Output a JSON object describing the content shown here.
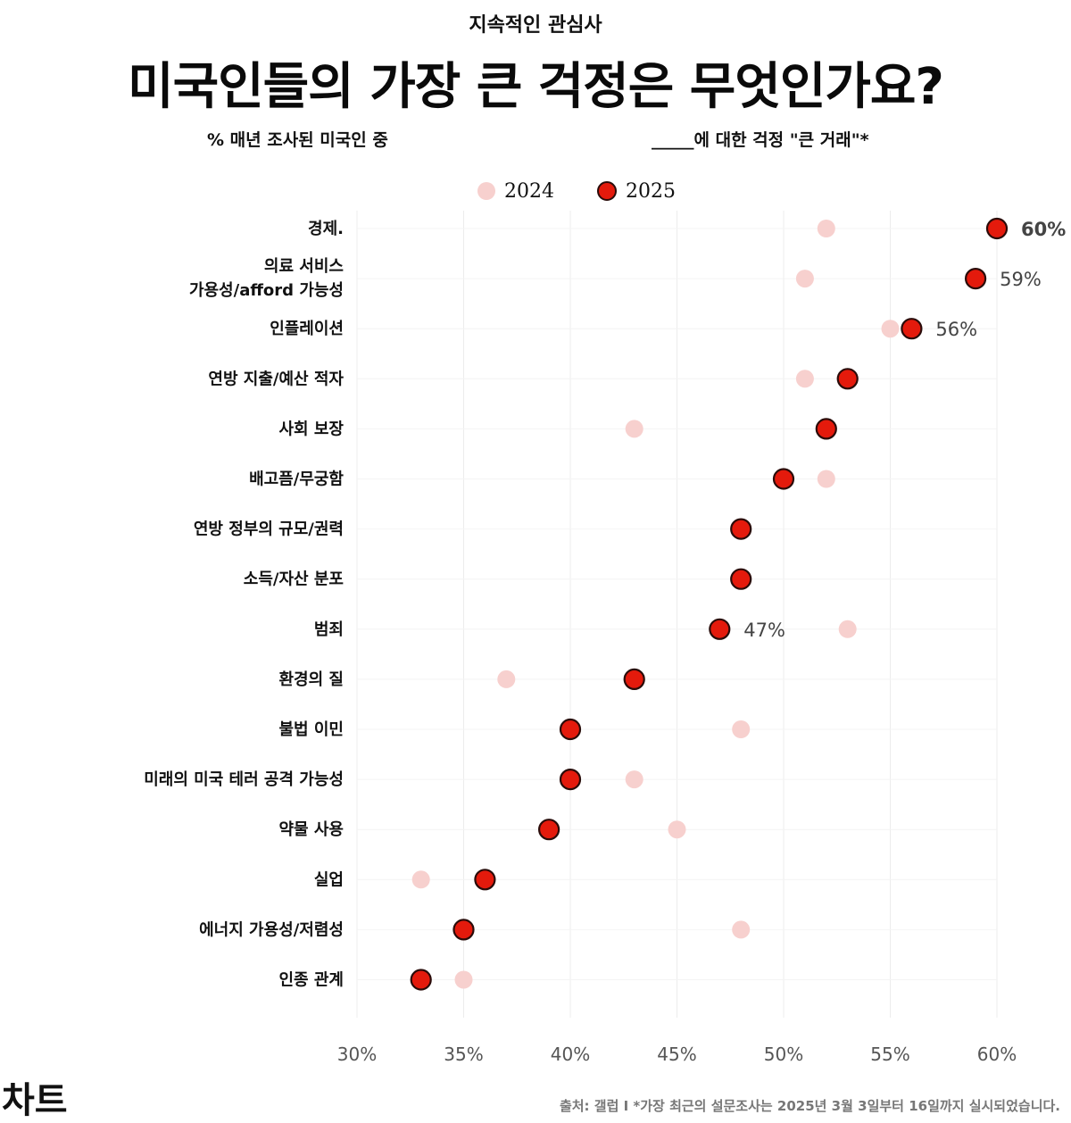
{
  "kicker": "지속적인 관심사",
  "title": "미국인들의 가장 큰 걱정은 무엇인가요?",
  "subtitle_left": "% 매년 조사된 미국인 중",
  "subtitle_right": "_____에 대한 걱정 \"큰 거래\"*",
  "brand": "차트",
  "source": "출처: 갤럽 I *가장 최근의 설문조사는 2025년 3월 3일부터 16일까지 실시되었습니다.",
  "colors": {
    "series_2024": "#f7d0ce",
    "series_2025": "#e41a0c",
    "marker_outline_2025": "#2a0c0a",
    "grid": "#ececec"
  },
  "chart_data": {
    "type": "scatter",
    "subtype": "dot-plot",
    "title": "미국인들의 가장 큰 걱정은 무엇인가요?",
    "xlim": [
      30,
      60
    ],
    "xticks": [
      30,
      35,
      40,
      45,
      50,
      55,
      60
    ],
    "xtick_labels": [
      "30%",
      "35%",
      "40%",
      "45%",
      "50%",
      "55%",
      "60%"
    ],
    "grid": true,
    "legend_position": "top",
    "categories": [
      "경제.",
      "의료 서비스\n가용성/afford 가능성",
      "인플레이션",
      "연방 지출/예산 적자",
      "사회 보장",
      "배고픔/무궁함",
      "연방 정부의 규모/권력",
      "소득/자산 분포",
      "범죄",
      "환경의 질",
      "불법 이민",
      "미래의 미국 테러 공격 가능성",
      "약물 사용",
      "실업",
      "에너지 가용성/저렴성",
      "인종 관계"
    ],
    "series": [
      {
        "name": "2024",
        "values": [
          52,
          51,
          55,
          51,
          43,
          52,
          48,
          48,
          53,
          37,
          48,
          43,
          45,
          33,
          48,
          35
        ]
      },
      {
        "name": "2025",
        "values": [
          60,
          59,
          56,
          53,
          52,
          50,
          48,
          48,
          47,
          43,
          40,
          40,
          39,
          36,
          35,
          33
        ]
      }
    ],
    "data_labels": [
      {
        "category_index": 0,
        "text": "60%"
      },
      {
        "category_index": 1,
        "text": "59%"
      },
      {
        "category_index": 2,
        "text": "56%"
      },
      {
        "category_index": 8,
        "text": "47%"
      }
    ]
  }
}
